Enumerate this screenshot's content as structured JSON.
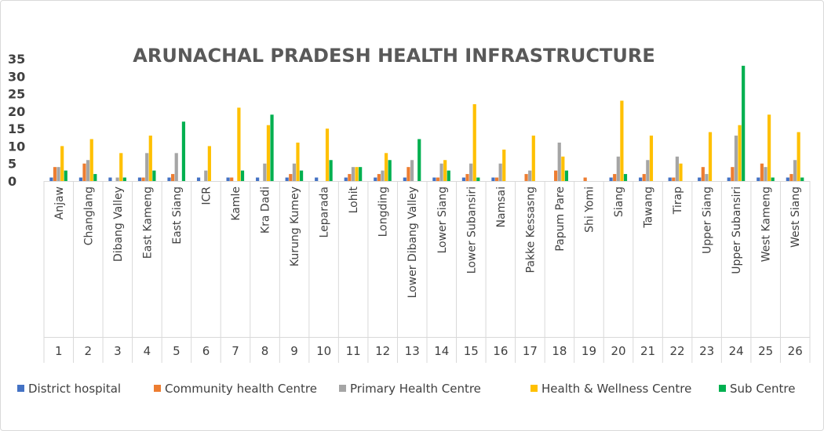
{
  "chart_data": {
    "type": "bar",
    "title": "ARUNACHAL PRADESH HEALTH INFRASTRUCTURE",
    "xlabel": "",
    "ylabel": "",
    "ylim": [
      0,
      35
    ],
    "yticks": [
      "0",
      "5",
      "10",
      "15",
      "20",
      "25",
      "30",
      "35"
    ],
    "grid": false,
    "legend_position": "bottom",
    "categories": [
      "Anjaw",
      "Changlang",
      "Dibang Valley",
      "East Kameng",
      "East Siang",
      "ICR",
      "Kamle",
      "Kra Dadi",
      "Kurung Kumey",
      "Leparada",
      "Lohit",
      "Longding",
      "Lower Dibang Valley",
      "Lower Siang",
      "Lower Subansiri",
      "Namsai",
      "Pakke Kessasng",
      "Papum Pare",
      "Shi Yomi",
      "Siang",
      "Tawang",
      "Tirap",
      "Upper Siang",
      "Upper Subansiri",
      "West Kameng",
      "West Siang"
    ],
    "numbers": [
      "1",
      "2",
      "3",
      "4",
      "5",
      "6",
      "7",
      "8",
      "9",
      "10",
      "11",
      "12",
      "13",
      "14",
      "15",
      "16",
      "17",
      "18",
      "19",
      "20",
      "21",
      "22",
      "23",
      "24",
      "25",
      "26"
    ],
    "series": [
      {
        "name": "District hospital",
        "color": "#4472c4",
        "values": [
          1,
          1,
          1,
          1,
          1,
          1,
          1,
          1,
          1,
          1,
          1,
          1,
          1,
          1,
          1,
          1,
          0,
          0,
          0,
          1,
          1,
          1,
          1,
          1,
          1,
          1
        ]
      },
      {
        "name": "Community health Centre",
        "color": "#ed7d31",
        "values": [
          4,
          5,
          0,
          1,
          2,
          0,
          1,
          0,
          2,
          0,
          2,
          2,
          4,
          1,
          2,
          1,
          2,
          3,
          1,
          2,
          2,
          1,
          4,
          4,
          5,
          2
        ]
      },
      {
        "name": "Primary Health Centre",
        "color": "#a5a5a5",
        "values": [
          4,
          6,
          1,
          8,
          8,
          3,
          0,
          5,
          5,
          0,
          4,
          3,
          6,
          5,
          5,
          5,
          3,
          11,
          0,
          7,
          6,
          7,
          2,
          13,
          4,
          6
        ]
      },
      {
        "name": "Health & Wellness Centre",
        "color": "#ffc000",
        "values": [
          10,
          12,
          8,
          13,
          0,
          10,
          21,
          16,
          11,
          15,
          4,
          8,
          0,
          6,
          22,
          9,
          13,
          7,
          0,
          23,
          13,
          5,
          14,
          16,
          19,
          14
        ]
      },
      {
        "name": "Sub Centre",
        "color": "#00b050",
        "values": [
          3,
          2,
          1,
          3,
          17,
          0,
          3,
          19,
          3,
          6,
          4,
          6,
          12,
          3,
          1,
          0,
          0,
          3,
          0,
          2,
          0,
          0,
          0,
          33,
          1,
          1
        ]
      }
    ]
  }
}
